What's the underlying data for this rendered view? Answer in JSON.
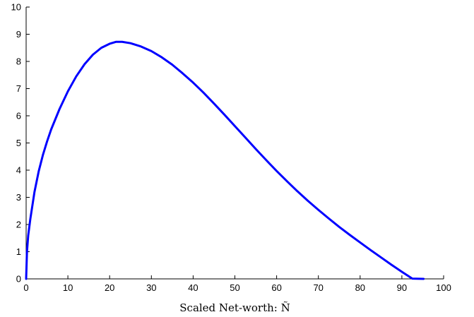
{
  "chart_data": {
    "type": "line",
    "title": "",
    "xlabel": "Scaled Net-worth: Ñ",
    "ylabel": "",
    "xlim": [
      0,
      100
    ],
    "ylim": [
      0,
      10
    ],
    "xticks": [
      0,
      10,
      20,
      30,
      40,
      50,
      60,
      70,
      80,
      90,
      100
    ],
    "yticks": [
      0,
      1,
      2,
      3,
      4,
      5,
      6,
      7,
      8,
      9,
      10
    ],
    "grid": false,
    "series": [
      {
        "color": "#0000ff",
        "x": [
          0,
          0.2,
          0.5,
          1,
          2,
          3,
          4,
          5,
          6,
          8,
          10,
          12,
          14,
          16,
          18,
          20,
          21.5,
          23,
          25,
          27.5,
          30,
          32.5,
          35,
          37.5,
          40,
          42.5,
          45,
          47.5,
          50,
          52.5,
          55,
          57.5,
          60,
          62.5,
          65,
          67.5,
          70,
          72.5,
          75,
          77.5,
          80,
          82.5,
          85,
          87.5,
          90,
          92.5,
          95.2
        ],
        "y": [
          0,
          1.0,
          1.6,
          2.2,
          3.2,
          3.95,
          4.55,
          5.05,
          5.5,
          6.25,
          6.9,
          7.45,
          7.9,
          8.25,
          8.5,
          8.65,
          8.72,
          8.72,
          8.67,
          8.55,
          8.38,
          8.15,
          7.88,
          7.56,
          7.22,
          6.85,
          6.45,
          6.04,
          5.62,
          5.2,
          4.78,
          4.37,
          3.97,
          3.59,
          3.22,
          2.87,
          2.54,
          2.22,
          1.91,
          1.62,
          1.34,
          1.06,
          0.79,
          0.52,
          0.26,
          0.01,
          -0.0
        ]
      }
    ]
  }
}
